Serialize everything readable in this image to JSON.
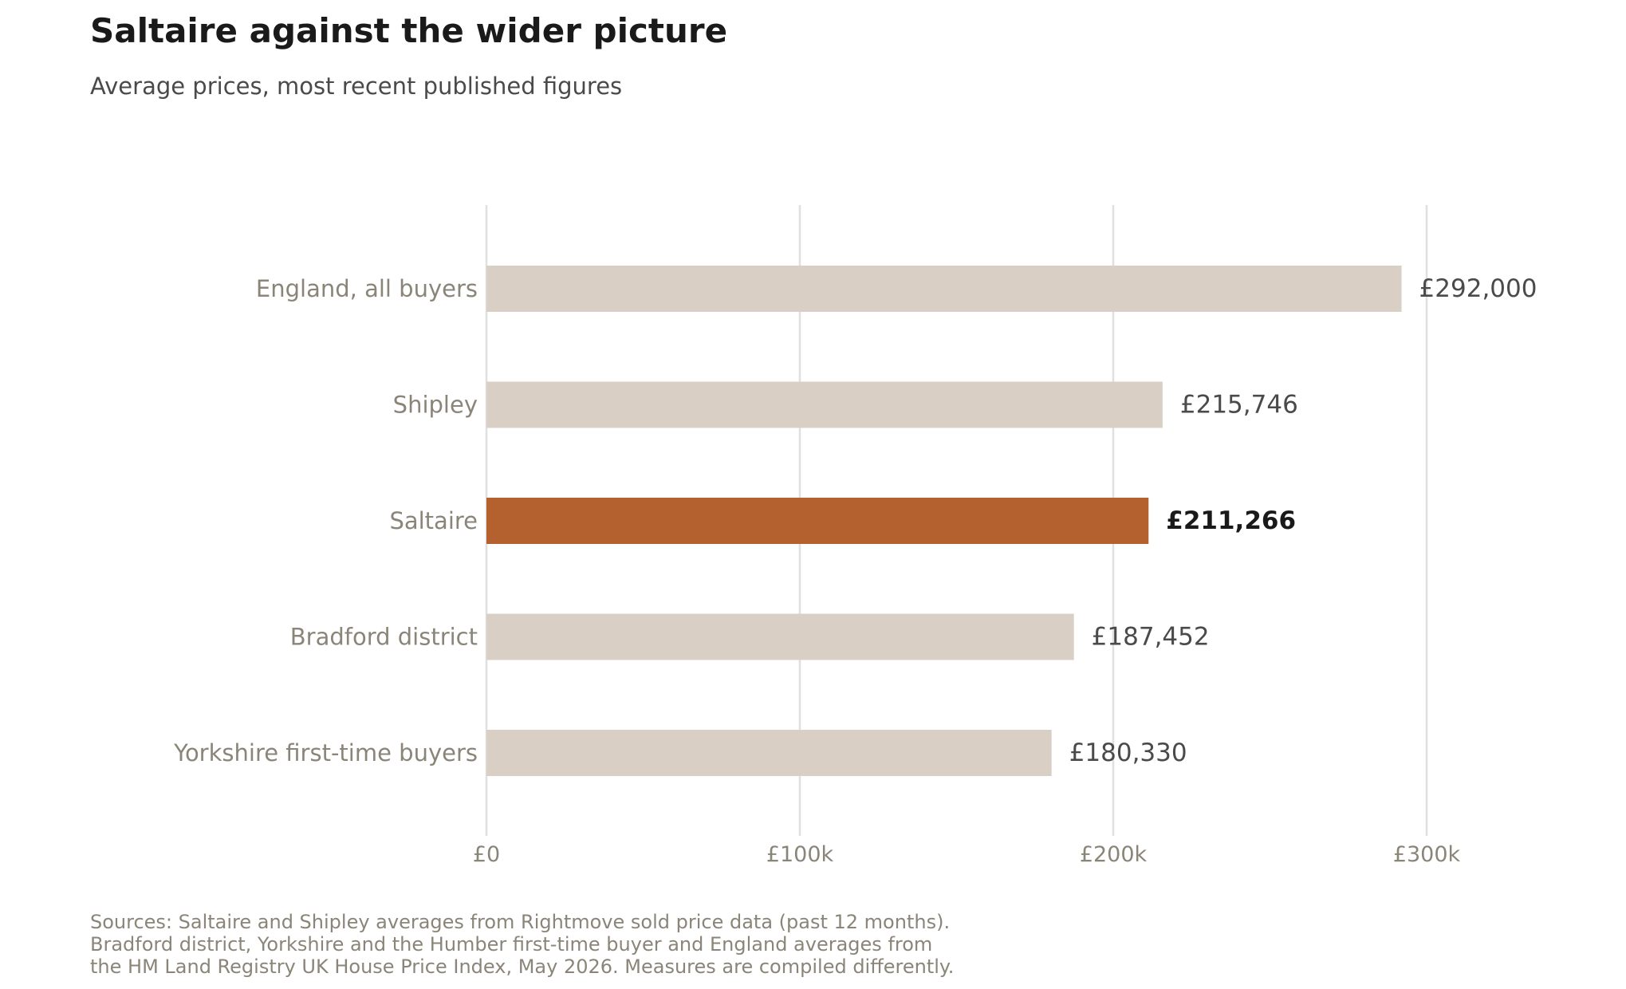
{
  "title": "Saltaire against the wider picture",
  "subtitle": "Average prices, most recent published figures",
  "chart_data": {
    "type": "bar",
    "orientation": "horizontal",
    "title": "Saltaire against the wider picture",
    "subtitle": "Average prices, most recent published figures",
    "xlabel": "",
    "ylabel": "",
    "xlim": [
      0,
      300000
    ],
    "x_ticks": [
      0,
      100000,
      200000,
      300000
    ],
    "x_tick_labels": [
      "£0",
      "£100k",
      "£200k",
      "£300k"
    ],
    "grid": "vertical",
    "categories": [
      "England, all buyers",
      "Shipley",
      "Saltaire",
      "Bradford district",
      "Yorkshire first-time buyers"
    ],
    "values": [
      292000,
      215746,
      211266,
      187452,
      180330
    ],
    "value_labels": [
      "£292,000",
      "£215,746",
      "£211,266",
      "£187,452",
      "£180,330"
    ],
    "highlight": "Saltaire",
    "colors": {
      "bar": "#d9cfc4",
      "highlight": "#b4612f",
      "grid": "#e0e0e0",
      "category_text": "#8a8578",
      "value_text": "#4a4a4a",
      "highlight_text": "#1a1a1a"
    }
  },
  "footnote": {
    "lines": [
      "Sources: Saltaire and Shipley averages from Rightmove sold price data (past 12 months).",
      "Bradford district, Yorkshire and the Humber first-time buyer and England averages from",
      "the HM Land Registry UK House Price Index, May 2026. Measures are compiled differently."
    ]
  }
}
